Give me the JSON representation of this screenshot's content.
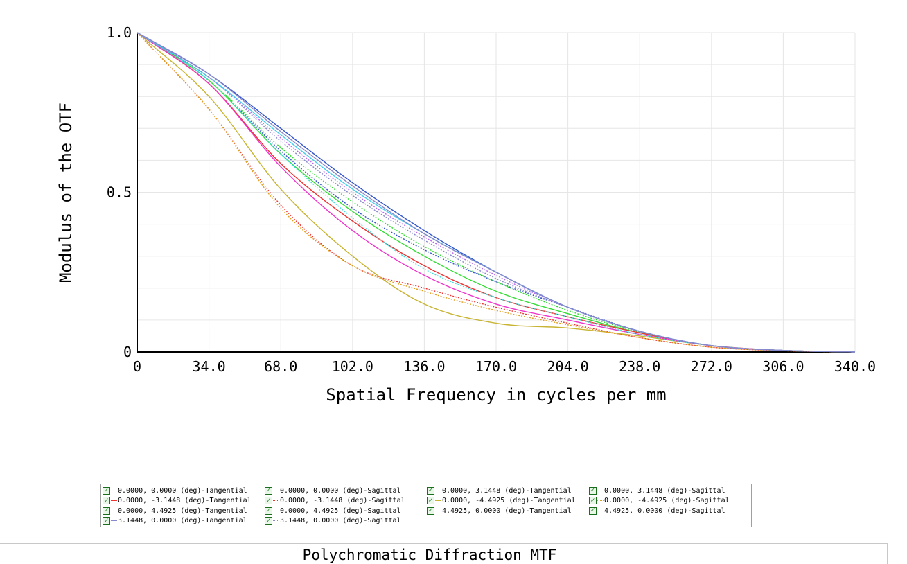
{
  "chart_data": {
    "type": "line",
    "title": "Polychromatic Diffraction MTF",
    "xlabel": "Spatial Frequency in cycles per mm",
    "ylabel": "Modulus of the OTF",
    "xlim": [
      0,
      340
    ],
    "ylim": [
      0,
      1.0
    ],
    "x_ticks": [
      "0",
      "34.0",
      "68.0",
      "102.0",
      "136.0",
      "170.0",
      "204.0",
      "238.0",
      "272.0",
      "306.0",
      "340.0"
    ],
    "y_ticks": [
      "0",
      "0.5",
      "1.0"
    ],
    "grid": true,
    "legend_position": "bottom",
    "x": [
      0,
      34,
      68,
      102,
      136,
      170,
      204,
      238,
      272,
      306,
      340
    ],
    "series": [
      {
        "name": "0.0000, 0.0000 (deg)-Tangential",
        "color": "#3355cc",
        "dash": "solid",
        "values": [
          1.0,
          0.87,
          0.7,
          0.53,
          0.38,
          0.25,
          0.14,
          0.065,
          0.02,
          0.005,
          0.0
        ]
      },
      {
        "name": "0.0000, 0.0000 (deg)-Sagittal",
        "color": "#3355cc",
        "dash": "dotted",
        "values": [
          1.0,
          0.85,
          0.63,
          0.45,
          0.32,
          0.22,
          0.14,
          0.065,
          0.02,
          0.005,
          0.0
        ]
      },
      {
        "name": "0.0000, 3.1448 (deg)-Tangential",
        "color": "#33dd33",
        "dash": "solid",
        "values": [
          1.0,
          0.85,
          0.62,
          0.44,
          0.3,
          0.19,
          0.12,
          0.06,
          0.02,
          0.005,
          0.0
        ]
      },
      {
        "name": "0.0000, 3.1448 (deg)-Sagittal",
        "color": "#33dd33",
        "dash": "dotted",
        "values": [
          1.0,
          0.85,
          0.64,
          0.47,
          0.33,
          0.22,
          0.13,
          0.063,
          0.02,
          0.005,
          0.0
        ]
      },
      {
        "name": "0.0000, -3.1448 (deg)-Tangential",
        "color": "#ee3333",
        "dash": "solid",
        "values": [
          1.0,
          0.84,
          0.59,
          0.41,
          0.27,
          0.17,
          0.11,
          0.06,
          0.02,
          0.005,
          0.0
        ]
      },
      {
        "name": "0.0000, -3.1448 (deg)-Sagittal",
        "color": "#ee3333",
        "dash": "dotted",
        "values": [
          1.0,
          0.76,
          0.46,
          0.27,
          0.2,
          0.14,
          0.09,
          0.045,
          0.015,
          0.004,
          0.0
        ]
      },
      {
        "name": "0.0000, -4.4925 (deg)-Tangential",
        "color": "#c8b432",
        "dash": "solid",
        "values": [
          1.0,
          0.8,
          0.51,
          0.3,
          0.15,
          0.09,
          0.075,
          0.05,
          0.02,
          0.005,
          0.0
        ]
      },
      {
        "name": "0.0000, -4.4925 (deg)-Sagittal",
        "color": "#e0a020",
        "dash": "dotted",
        "values": [
          1.0,
          0.76,
          0.45,
          0.27,
          0.19,
          0.13,
          0.085,
          0.045,
          0.015,
          0.004,
          0.0
        ]
      },
      {
        "name": "0.0000, 4.4925 (deg)-Tangential",
        "color": "#ee33cc",
        "dash": "solid",
        "values": [
          1.0,
          0.84,
          0.58,
          0.38,
          0.24,
          0.15,
          0.1,
          0.055,
          0.02,
          0.005,
          0.0
        ]
      },
      {
        "name": "0.0000, 4.4925 (deg)-Sagittal",
        "color": "#bb66ee",
        "dash": "dotted",
        "values": [
          1.0,
          0.86,
          0.67,
          0.5,
          0.36,
          0.24,
          0.14,
          0.065,
          0.02,
          0.005,
          0.0
        ]
      },
      {
        "name": "4.4925, 0.0000 (deg)-Tangential",
        "color": "#44ccee",
        "dash": "solid",
        "values": [
          1.0,
          0.86,
          0.68,
          0.51,
          0.37,
          0.25,
          0.14,
          0.065,
          0.02,
          0.005,
          0.0
        ]
      },
      {
        "name": "4.4925, 0.0000 (deg)-Sagittal",
        "color": "#44dddd",
        "dash": "dotted",
        "values": [
          1.0,
          0.85,
          0.62,
          0.42,
          0.26,
          0.17,
          0.11,
          0.055,
          0.02,
          0.005,
          0.0
        ]
      },
      {
        "name": "3.1448, 0.0000 (deg)-Tangential",
        "color": "#8888cc",
        "dash": "solid",
        "values": [
          1.0,
          0.87,
          0.69,
          0.52,
          0.37,
          0.25,
          0.14,
          0.065,
          0.02,
          0.005,
          0.0
        ]
      },
      {
        "name": "3.1448, 0.0000 (deg)-Sagittal",
        "color": "#8888cc",
        "dash": "dotted",
        "values": [
          1.0,
          0.86,
          0.66,
          0.49,
          0.35,
          0.23,
          0.14,
          0.064,
          0.02,
          0.005,
          0.0
        ]
      }
    ]
  },
  "legend": {
    "check_glyph": "✓",
    "entries": [
      "0.0000, 0.0000 (deg)-Tangential",
      "0.0000, 0.0000 (deg)-Sagittal",
      "0.0000, 3.1448 (deg)-Tangential",
      "0.0000, 3.1448 (deg)-Sagittal",
      "0.0000, -3.1448 (deg)-Tangential",
      "0.0000, -3.1448 (deg)-Sagittal",
      "0.0000, -4.4925 (deg)-Tangential",
      "0.0000, -4.4925 (deg)-Sagittal",
      "0.0000, 4.4925 (deg)-Tangential",
      "0.0000, 4.4925 (deg)-Sagittal",
      "4.4925, 0.0000 (deg)-Tangential",
      "4.4925, 0.0000 (deg)-Sagittal",
      "3.1448, 0.0000 (deg)-Tangential",
      "3.1448, 0.0000 (deg)-Sagittal"
    ]
  }
}
